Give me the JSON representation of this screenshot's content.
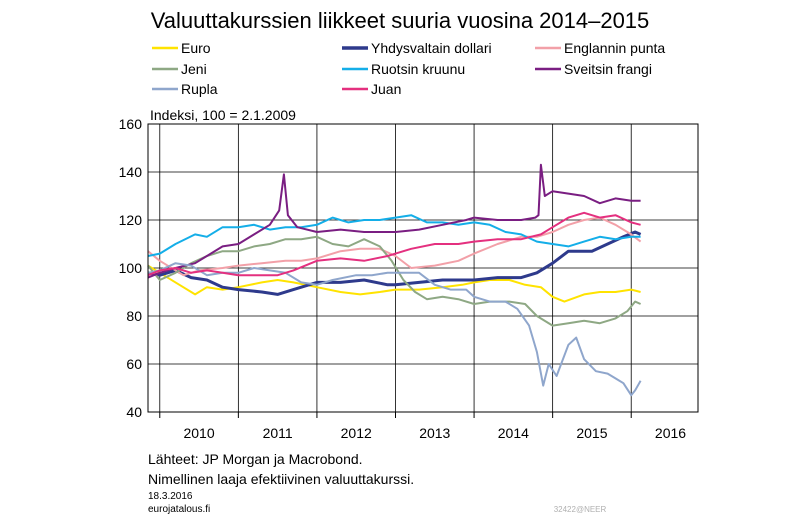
{
  "title": "Valuuttakurssien liikkeet suuria vuosina 2014–2015",
  "ylabel": "Indeksi, 100 = 2.1.2009",
  "source": "Lähteet: JP Morgan ja Macrobond.",
  "note": "Nimellinen laaja efektiivinen valuuttakurssi.",
  "date": "18.3.2016",
  "site": "eurojatalous.fi",
  "code": "32422@NEER",
  "chart_data": {
    "type": "line",
    "ylim": [
      40,
      160
    ],
    "xlim": [
      2009.85,
      2016.85
    ],
    "yticks": [
      40,
      60,
      80,
      100,
      120,
      140,
      160
    ],
    "xticks": [
      {
        "label": "2010",
        "value": 2010.0
      },
      {
        "label": "2011",
        "value": 2011.0
      },
      {
        "label": "2012",
        "value": 2012.0
      },
      {
        "label": "2013",
        "value": 2013.0
      },
      {
        "label": "2014",
        "value": 2014.0
      },
      {
        "label": "2015",
        "value": 2015.0
      },
      {
        "label": "2016",
        "value": 2016.0
      }
    ],
    "grid": true,
    "legend_position": "top",
    "series": [
      {
        "name": "Euro",
        "color": "#ffe300",
        "width": 2,
        "points": [
          [
            2009.85,
            101
          ],
          [
            2010.0,
            98
          ],
          [
            2010.25,
            93
          ],
          [
            2010.45,
            89
          ],
          [
            2010.6,
            92
          ],
          [
            2010.8,
            91
          ],
          [
            2011.0,
            92
          ],
          [
            2011.3,
            94
          ],
          [
            2011.5,
            95
          ],
          [
            2011.7,
            94
          ],
          [
            2012.0,
            92
          ],
          [
            2012.3,
            90
          ],
          [
            2012.55,
            89
          ],
          [
            2012.8,
            90
          ],
          [
            2013.0,
            91
          ],
          [
            2013.3,
            91
          ],
          [
            2013.6,
            92
          ],
          [
            2013.85,
            93
          ],
          [
            2014.0,
            94
          ],
          [
            2014.2,
            95
          ],
          [
            2014.45,
            95
          ],
          [
            2014.65,
            93
          ],
          [
            2014.85,
            92
          ],
          [
            2015.0,
            88
          ],
          [
            2015.15,
            86
          ],
          [
            2015.4,
            89
          ],
          [
            2015.6,
            90
          ],
          [
            2015.8,
            90
          ],
          [
            2016.0,
            91
          ],
          [
            2016.12,
            90
          ]
        ]
      },
      {
        "name": "Yhdysvaltain dollari",
        "color": "#2e3a8c",
        "width": 3,
        "points": [
          [
            2009.85,
            98
          ],
          [
            2010.0,
            97
          ],
          [
            2010.2,
            99
          ],
          [
            2010.4,
            96
          ],
          [
            2010.6,
            95
          ],
          [
            2010.8,
            92
          ],
          [
            2011.0,
            91
          ],
          [
            2011.3,
            90
          ],
          [
            2011.5,
            89
          ],
          [
            2011.7,
            91
          ],
          [
            2012.0,
            94
          ],
          [
            2012.3,
            94
          ],
          [
            2012.6,
            95
          ],
          [
            2012.9,
            93
          ],
          [
            2013.0,
            93
          ],
          [
            2013.3,
            94
          ],
          [
            2013.6,
            95
          ],
          [
            2013.9,
            95
          ],
          [
            2014.0,
            95
          ],
          [
            2014.3,
            96
          ],
          [
            2014.6,
            96
          ],
          [
            2014.8,
            98
          ],
          [
            2015.0,
            102
          ],
          [
            2015.2,
            107
          ],
          [
            2015.5,
            107
          ],
          [
            2015.7,
            110
          ],
          [
            2015.9,
            113
          ],
          [
            2016.05,
            115
          ],
          [
            2016.12,
            114
          ]
        ]
      },
      {
        "name": "Englannin punta",
        "color": "#f2a0a8",
        "width": 2,
        "points": [
          [
            2009.85,
            107
          ],
          [
            2010.0,
            103
          ],
          [
            2010.3,
            97
          ],
          [
            2010.5,
            99
          ],
          [
            2010.8,
            100
          ],
          [
            2011.0,
            101
          ],
          [
            2011.3,
            102
          ],
          [
            2011.6,
            103
          ],
          [
            2011.8,
            103
          ],
          [
            2012.0,
            104
          ],
          [
            2012.3,
            107
          ],
          [
            2012.55,
            108
          ],
          [
            2012.8,
            108
          ],
          [
            2013.0,
            105
          ],
          [
            2013.2,
            100
          ],
          [
            2013.5,
            101
          ],
          [
            2013.8,
            103
          ],
          [
            2014.0,
            106
          ],
          [
            2014.3,
            110
          ],
          [
            2014.6,
            113
          ],
          [
            2014.8,
            113
          ],
          [
            2015.0,
            115
          ],
          [
            2015.2,
            118
          ],
          [
            2015.4,
            120
          ],
          [
            2015.6,
            121
          ],
          [
            2015.8,
            118
          ],
          [
            2016.0,
            114
          ],
          [
            2016.12,
            111
          ]
        ]
      },
      {
        "name": "Jeni",
        "color": "#8ea884",
        "width": 2,
        "points": [
          [
            2009.85,
            101
          ],
          [
            2010.0,
            95
          ],
          [
            2010.2,
            98
          ],
          [
            2010.4,
            102
          ],
          [
            2010.6,
            105
          ],
          [
            2010.8,
            107
          ],
          [
            2011.0,
            107
          ],
          [
            2011.2,
            109
          ],
          [
            2011.4,
            110
          ],
          [
            2011.6,
            112
          ],
          [
            2011.8,
            112
          ],
          [
            2012.0,
            113
          ],
          [
            2012.2,
            110
          ],
          [
            2012.4,
            109
          ],
          [
            2012.6,
            112
          ],
          [
            2012.8,
            109
          ],
          [
            2012.95,
            103
          ],
          [
            2013.1,
            95
          ],
          [
            2013.25,
            90
          ],
          [
            2013.4,
            87
          ],
          [
            2013.6,
            88
          ],
          [
            2013.8,
            87
          ],
          [
            2014.0,
            85
          ],
          [
            2014.2,
            86
          ],
          [
            2014.45,
            86
          ],
          [
            2014.65,
            85
          ],
          [
            2014.8,
            80
          ],
          [
            2015.0,
            76
          ],
          [
            2015.2,
            77
          ],
          [
            2015.4,
            78
          ],
          [
            2015.6,
            77
          ],
          [
            2015.8,
            79
          ],
          [
            2015.95,
            82
          ],
          [
            2016.05,
            86
          ],
          [
            2016.12,
            85
          ]
        ]
      },
      {
        "name": "Ruotsin kruunu",
        "color": "#14aee8",
        "width": 2,
        "points": [
          [
            2009.85,
            105
          ],
          [
            2010.0,
            106
          ],
          [
            2010.2,
            110
          ],
          [
            2010.45,
            114
          ],
          [
            2010.6,
            113
          ],
          [
            2010.8,
            117
          ],
          [
            2011.0,
            117
          ],
          [
            2011.2,
            118
          ],
          [
            2011.4,
            116
          ],
          [
            2011.6,
            117
          ],
          [
            2011.8,
            117
          ],
          [
            2012.0,
            118
          ],
          [
            2012.2,
            121
          ],
          [
            2012.4,
            119
          ],
          [
            2012.6,
            120
          ],
          [
            2012.8,
            120
          ],
          [
            2013.0,
            121
          ],
          [
            2013.2,
            122
          ],
          [
            2013.4,
            119
          ],
          [
            2013.6,
            119
          ],
          [
            2013.8,
            118
          ],
          [
            2014.0,
            119
          ],
          [
            2014.2,
            118
          ],
          [
            2014.4,
            115
          ],
          [
            2014.6,
            114
          ],
          [
            2014.8,
            111
          ],
          [
            2015.0,
            110
          ],
          [
            2015.2,
            109
          ],
          [
            2015.4,
            111
          ],
          [
            2015.6,
            113
          ],
          [
            2015.8,
            112
          ],
          [
            2016.0,
            113
          ],
          [
            2016.12,
            113
          ]
        ]
      },
      {
        "name": "Sveitsin frangi",
        "color": "#7a1e82",
        "width": 2,
        "points": [
          [
            2009.85,
            96
          ],
          [
            2010.0,
            98
          ],
          [
            2010.2,
            100
          ],
          [
            2010.45,
            102
          ],
          [
            2010.6,
            105
          ],
          [
            2010.8,
            109
          ],
          [
            2011.0,
            110
          ],
          [
            2011.2,
            114
          ],
          [
            2011.4,
            118
          ],
          [
            2011.52,
            124
          ],
          [
            2011.58,
            139
          ],
          [
            2011.63,
            122
          ],
          [
            2011.75,
            117
          ],
          [
            2012.0,
            115
          ],
          [
            2012.3,
            116
          ],
          [
            2012.6,
            115
          ],
          [
            2012.9,
            115
          ],
          [
            2013.0,
            115
          ],
          [
            2013.3,
            116
          ],
          [
            2013.6,
            118
          ],
          [
            2013.9,
            120
          ],
          [
            2014.0,
            121
          ],
          [
            2014.3,
            120
          ],
          [
            2014.6,
            120
          ],
          [
            2014.78,
            121
          ],
          [
            2014.82,
            122
          ],
          [
            2014.85,
            143
          ],
          [
            2014.9,
            130
          ],
          [
            2015.0,
            132
          ],
          [
            2015.2,
            131
          ],
          [
            2015.4,
            130
          ],
          [
            2015.6,
            127
          ],
          [
            2015.8,
            129
          ],
          [
            2016.0,
            128
          ],
          [
            2016.12,
            128
          ]
        ]
      },
      {
        "name": "Rupla",
        "color": "#8fa6cc",
        "width": 2,
        "points": [
          [
            2009.85,
            98
          ],
          [
            2010.0,
            99
          ],
          [
            2010.2,
            102
          ],
          [
            2010.4,
            101
          ],
          [
            2010.6,
            97
          ],
          [
            2010.8,
            98
          ],
          [
            2011.0,
            98
          ],
          [
            2011.2,
            100
          ],
          [
            2011.4,
            99
          ],
          [
            2011.6,
            98
          ],
          [
            2011.8,
            94
          ],
          [
            2012.0,
            93
          ],
          [
            2012.2,
            95
          ],
          [
            2012.5,
            97
          ],
          [
            2012.7,
            97
          ],
          [
            2012.9,
            98
          ],
          [
            2013.1,
            98
          ],
          [
            2013.3,
            98
          ],
          [
            2013.5,
            93
          ],
          [
            2013.7,
            91
          ],
          [
            2013.9,
            91
          ],
          [
            2014.0,
            88
          ],
          [
            2014.2,
            86
          ],
          [
            2014.4,
            86
          ],
          [
            2014.55,
            83
          ],
          [
            2014.7,
            76
          ],
          [
            2014.8,
            65
          ],
          [
            2014.88,
            51
          ],
          [
            2014.95,
            60
          ],
          [
            2015.05,
            55
          ],
          [
            2015.2,
            68
          ],
          [
            2015.3,
            71
          ],
          [
            2015.4,
            62
          ],
          [
            2015.55,
            57
          ],
          [
            2015.7,
            56
          ],
          [
            2015.8,
            54
          ],
          [
            2015.9,
            52
          ],
          [
            2016.0,
            47
          ],
          [
            2016.05,
            49
          ],
          [
            2016.12,
            53
          ]
        ]
      },
      {
        "name": "Juan",
        "color": "#e4307f",
        "width": 2,
        "points": [
          [
            2009.85,
            97
          ],
          [
            2010.0,
            99
          ],
          [
            2010.2,
            100
          ],
          [
            2010.4,
            98
          ],
          [
            2010.6,
            99
          ],
          [
            2010.8,
            98
          ],
          [
            2011.0,
            97
          ],
          [
            2011.3,
            97
          ],
          [
            2011.5,
            97
          ],
          [
            2011.7,
            99
          ],
          [
            2012.0,
            103
          ],
          [
            2012.3,
            104
          ],
          [
            2012.6,
            103
          ],
          [
            2012.9,
            105
          ],
          [
            2013.0,
            106
          ],
          [
            2013.2,
            108
          ],
          [
            2013.5,
            110
          ],
          [
            2013.8,
            110
          ],
          [
            2014.0,
            111
          ],
          [
            2014.3,
            112
          ],
          [
            2014.6,
            112
          ],
          [
            2014.85,
            114
          ],
          [
            2015.0,
            117
          ],
          [
            2015.2,
            121
          ],
          [
            2015.4,
            123
          ],
          [
            2015.6,
            121
          ],
          [
            2015.8,
            122
          ],
          [
            2016.0,
            119
          ],
          [
            2016.12,
            118
          ]
        ]
      }
    ]
  }
}
